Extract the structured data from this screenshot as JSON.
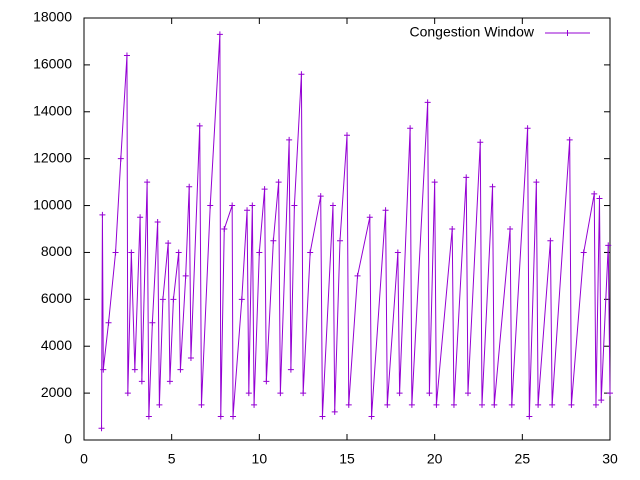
{
  "chart_data": {
    "type": "line",
    "x": [
      1.0,
      1.05,
      1.1,
      1.4,
      1.8,
      2.1,
      2.45,
      2.5,
      2.7,
      2.9,
      3.2,
      3.3,
      3.6,
      3.7,
      3.9,
      4.2,
      4.3,
      4.5,
      4.8,
      4.9,
      5.1,
      5.4,
      5.5,
      5.8,
      6.0,
      6.1,
      6.6,
      6.7,
      7.2,
      7.75,
      7.8,
      8.0,
      8.45,
      8.5,
      9.0,
      9.3,
      9.4,
      9.6,
      9.7,
      10.0,
      10.3,
      10.4,
      10.8,
      11.1,
      11.2,
      11.7,
      11.8,
      12.0,
      12.4,
      12.5,
      12.9,
      13.5,
      13.6,
      14.2,
      14.3,
      14.6,
      15.0,
      15.1,
      15.6,
      16.3,
      16.4,
      17.2,
      17.3,
      17.9,
      18.0,
      18.6,
      18.7,
      19.6,
      19.7,
      20.0,
      20.1,
      21.0,
      21.1,
      21.8,
      21.9,
      22.6,
      22.7,
      23.3,
      23.4,
      24.3,
      24.4,
      25.3,
      25.4,
      25.8,
      25.9,
      26.6,
      26.7,
      27.7,
      27.8,
      28.5,
      29.1,
      29.2,
      29.4,
      29.5,
      29.9,
      30.0
    ],
    "series": [
      {
        "name": "Congestion Window",
        "color": "#9400d3",
        "values": [
          500,
          9600,
          3000,
          5000,
          8000,
          12000,
          16400,
          2000,
          8000,
          3000,
          9500,
          2500,
          11000,
          1000,
          5000,
          9300,
          1500,
          6000,
          8400,
          2500,
          6000,
          8000,
          3000,
          7000,
          10800,
          3500,
          13400,
          1500,
          10000,
          17300,
          1000,
          9000,
          10000,
          1000,
          6000,
          9800,
          2000,
          10000,
          1500,
          8000,
          10700,
          2500,
          8500,
          11000,
          2000,
          12800,
          3000,
          10000,
          15600,
          2000,
          8000,
          10400,
          1000,
          10000,
          1200,
          8500,
          13000,
          1500,
          7000,
          9500,
          1000,
          9800,
          1500,
          8000,
          2000,
          13300,
          1500,
          14400,
          2000,
          11000,
          1500,
          9000,
          1500,
          11200,
          2000,
          12700,
          1500,
          10800,
          1500,
          9000,
          1500,
          13300,
          1000,
          11000,
          1500,
          8500,
          1500,
          12800,
          1500,
          8000,
          10500,
          1500,
          10300,
          1700,
          8300,
          2000
        ]
      }
    ],
    "xlim": [
      0,
      30
    ],
    "xticks": [
      0,
      5,
      10,
      15,
      20,
      25,
      30
    ],
    "ylim": [
      0,
      18000
    ],
    "yticks": [
      0,
      2000,
      4000,
      6000,
      8000,
      10000,
      12000,
      14000,
      16000,
      18000
    ],
    "legend": "top-right"
  }
}
